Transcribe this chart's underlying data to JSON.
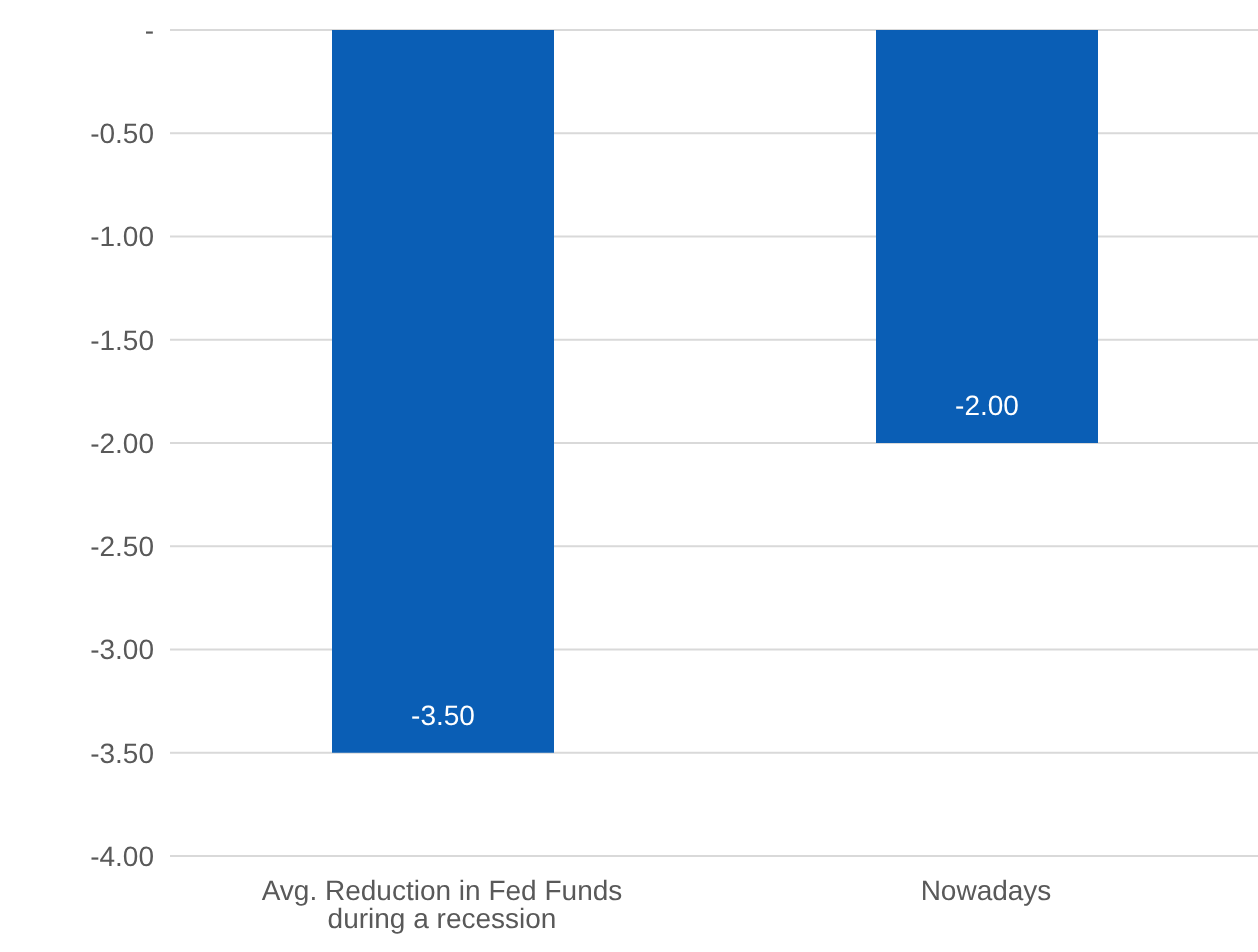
{
  "chart_data": {
    "type": "bar",
    "categories": [
      "Avg. Reduction in Fed Funds during a recession",
      "Nowadays"
    ],
    "values": [
      -3.5,
      -2.0
    ],
    "value_labels": [
      "-3.50",
      "-2.00"
    ],
    "color": "#0a5eb5",
    "ylim": [
      -4,
      0
    ],
    "yticks": [
      {
        "value": 0,
        "label": "-"
      },
      {
        "value": -0.5,
        "label": "-0.50"
      },
      {
        "value": -1,
        "label": "-1.00"
      },
      {
        "value": -1.5,
        "label": "-1.50"
      },
      {
        "value": -2,
        "label": "-2.00"
      },
      {
        "value": -2.5,
        "label": "-2.50"
      },
      {
        "value": -3,
        "label": "-3.00"
      },
      {
        "value": -3.5,
        "label": "-3.50"
      },
      {
        "value": -4,
        "label": "-4.00"
      }
    ],
    "grid": "y",
    "legend": false
  }
}
